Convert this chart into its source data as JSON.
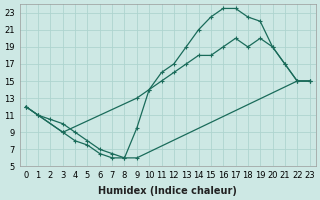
{
  "xlabel": "Humidex (Indice chaleur)",
  "background_color": "#cde8e4",
  "grid_color": "#aed4cf",
  "line_color": "#1a6b5a",
  "xlim": [
    -0.5,
    23.5
  ],
  "ylim": [
    5,
    24
  ],
  "xticks": [
    0,
    1,
    2,
    3,
    4,
    5,
    6,
    7,
    8,
    9,
    10,
    11,
    12,
    13,
    14,
    15,
    16,
    17,
    18,
    19,
    20,
    21,
    22,
    23
  ],
  "yticks": [
    5,
    7,
    9,
    11,
    13,
    15,
    17,
    19,
    21,
    23
  ],
  "line1_x": [
    0,
    1,
    3,
    4,
    5,
    6,
    7,
    8,
    9,
    10,
    11,
    12,
    13,
    14,
    15,
    16,
    17,
    18,
    19,
    20,
    21,
    22,
    23
  ],
  "line1_y": [
    12,
    11,
    9,
    8,
    7.5,
    6.5,
    6,
    6,
    9.5,
    14,
    16,
    17,
    19,
    21,
    22.5,
    23.5,
    23.5,
    22.5,
    22,
    19,
    17,
    15,
    15
  ],
  "line2_x": [
    0,
    1,
    3,
    9,
    10,
    11,
    12,
    13,
    14,
    15,
    16,
    17,
    18,
    19,
    20,
    21,
    22,
    23
  ],
  "line2_y": [
    12,
    11,
    9,
    13,
    14,
    15,
    16,
    17,
    18,
    18,
    19,
    20,
    19,
    20,
    19,
    17,
    15,
    15
  ],
  "line3_x": [
    0,
    1,
    2,
    3,
    4,
    5,
    6,
    7,
    8,
    9,
    22,
    23
  ],
  "line3_y": [
    12,
    11,
    10.5,
    10,
    9,
    8,
    7,
    6.5,
    6,
    6,
    15,
    15
  ],
  "marker_size": 3,
  "line_width": 0.9,
  "xlabel_fontsize": 7,
  "tick_fontsize": 6
}
